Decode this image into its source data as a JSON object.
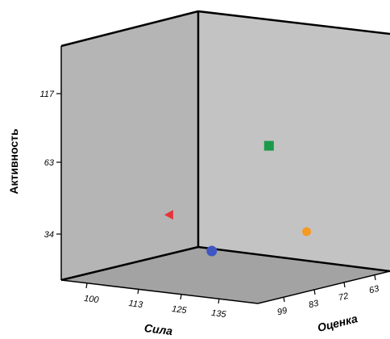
{
  "chart_data": {
    "type": "scatter",
    "dimensions": "3d",
    "grid": false,
    "axes": {
      "x": {
        "label": "Сила",
        "ticks": [
          "100",
          "113",
          "125",
          "135"
        ]
      },
      "y": {
        "label": "Активность",
        "ticks": [
          "34",
          "63",
          "117"
        ]
      },
      "z": {
        "label": "Оценка",
        "ticks": [
          "99",
          "83",
          "72",
          "63"
        ]
      }
    },
    "points": [
      {
        "marker": "square",
        "color": "#1a9a4a",
        "sila": 123,
        "aktivnost": 117,
        "otsenka": 72
      },
      {
        "marker": "triangle",
        "color": "#e8333c",
        "sila": 112,
        "aktivnost": 63,
        "otsenka": 99
      },
      {
        "marker": "circle",
        "color": "#3f56c4",
        "sila": 125,
        "aktivnost": 34,
        "otsenka": 99
      },
      {
        "marker": "circle",
        "color": "#f59a23",
        "sila": 128,
        "aktivnost": 34,
        "otsenka": 63
      }
    ],
    "colors": {
      "back_wall": "#c2c2c2",
      "side_wall": "#b4b4b4",
      "floor": "#a2a2a2",
      "edges": "#000000"
    }
  }
}
